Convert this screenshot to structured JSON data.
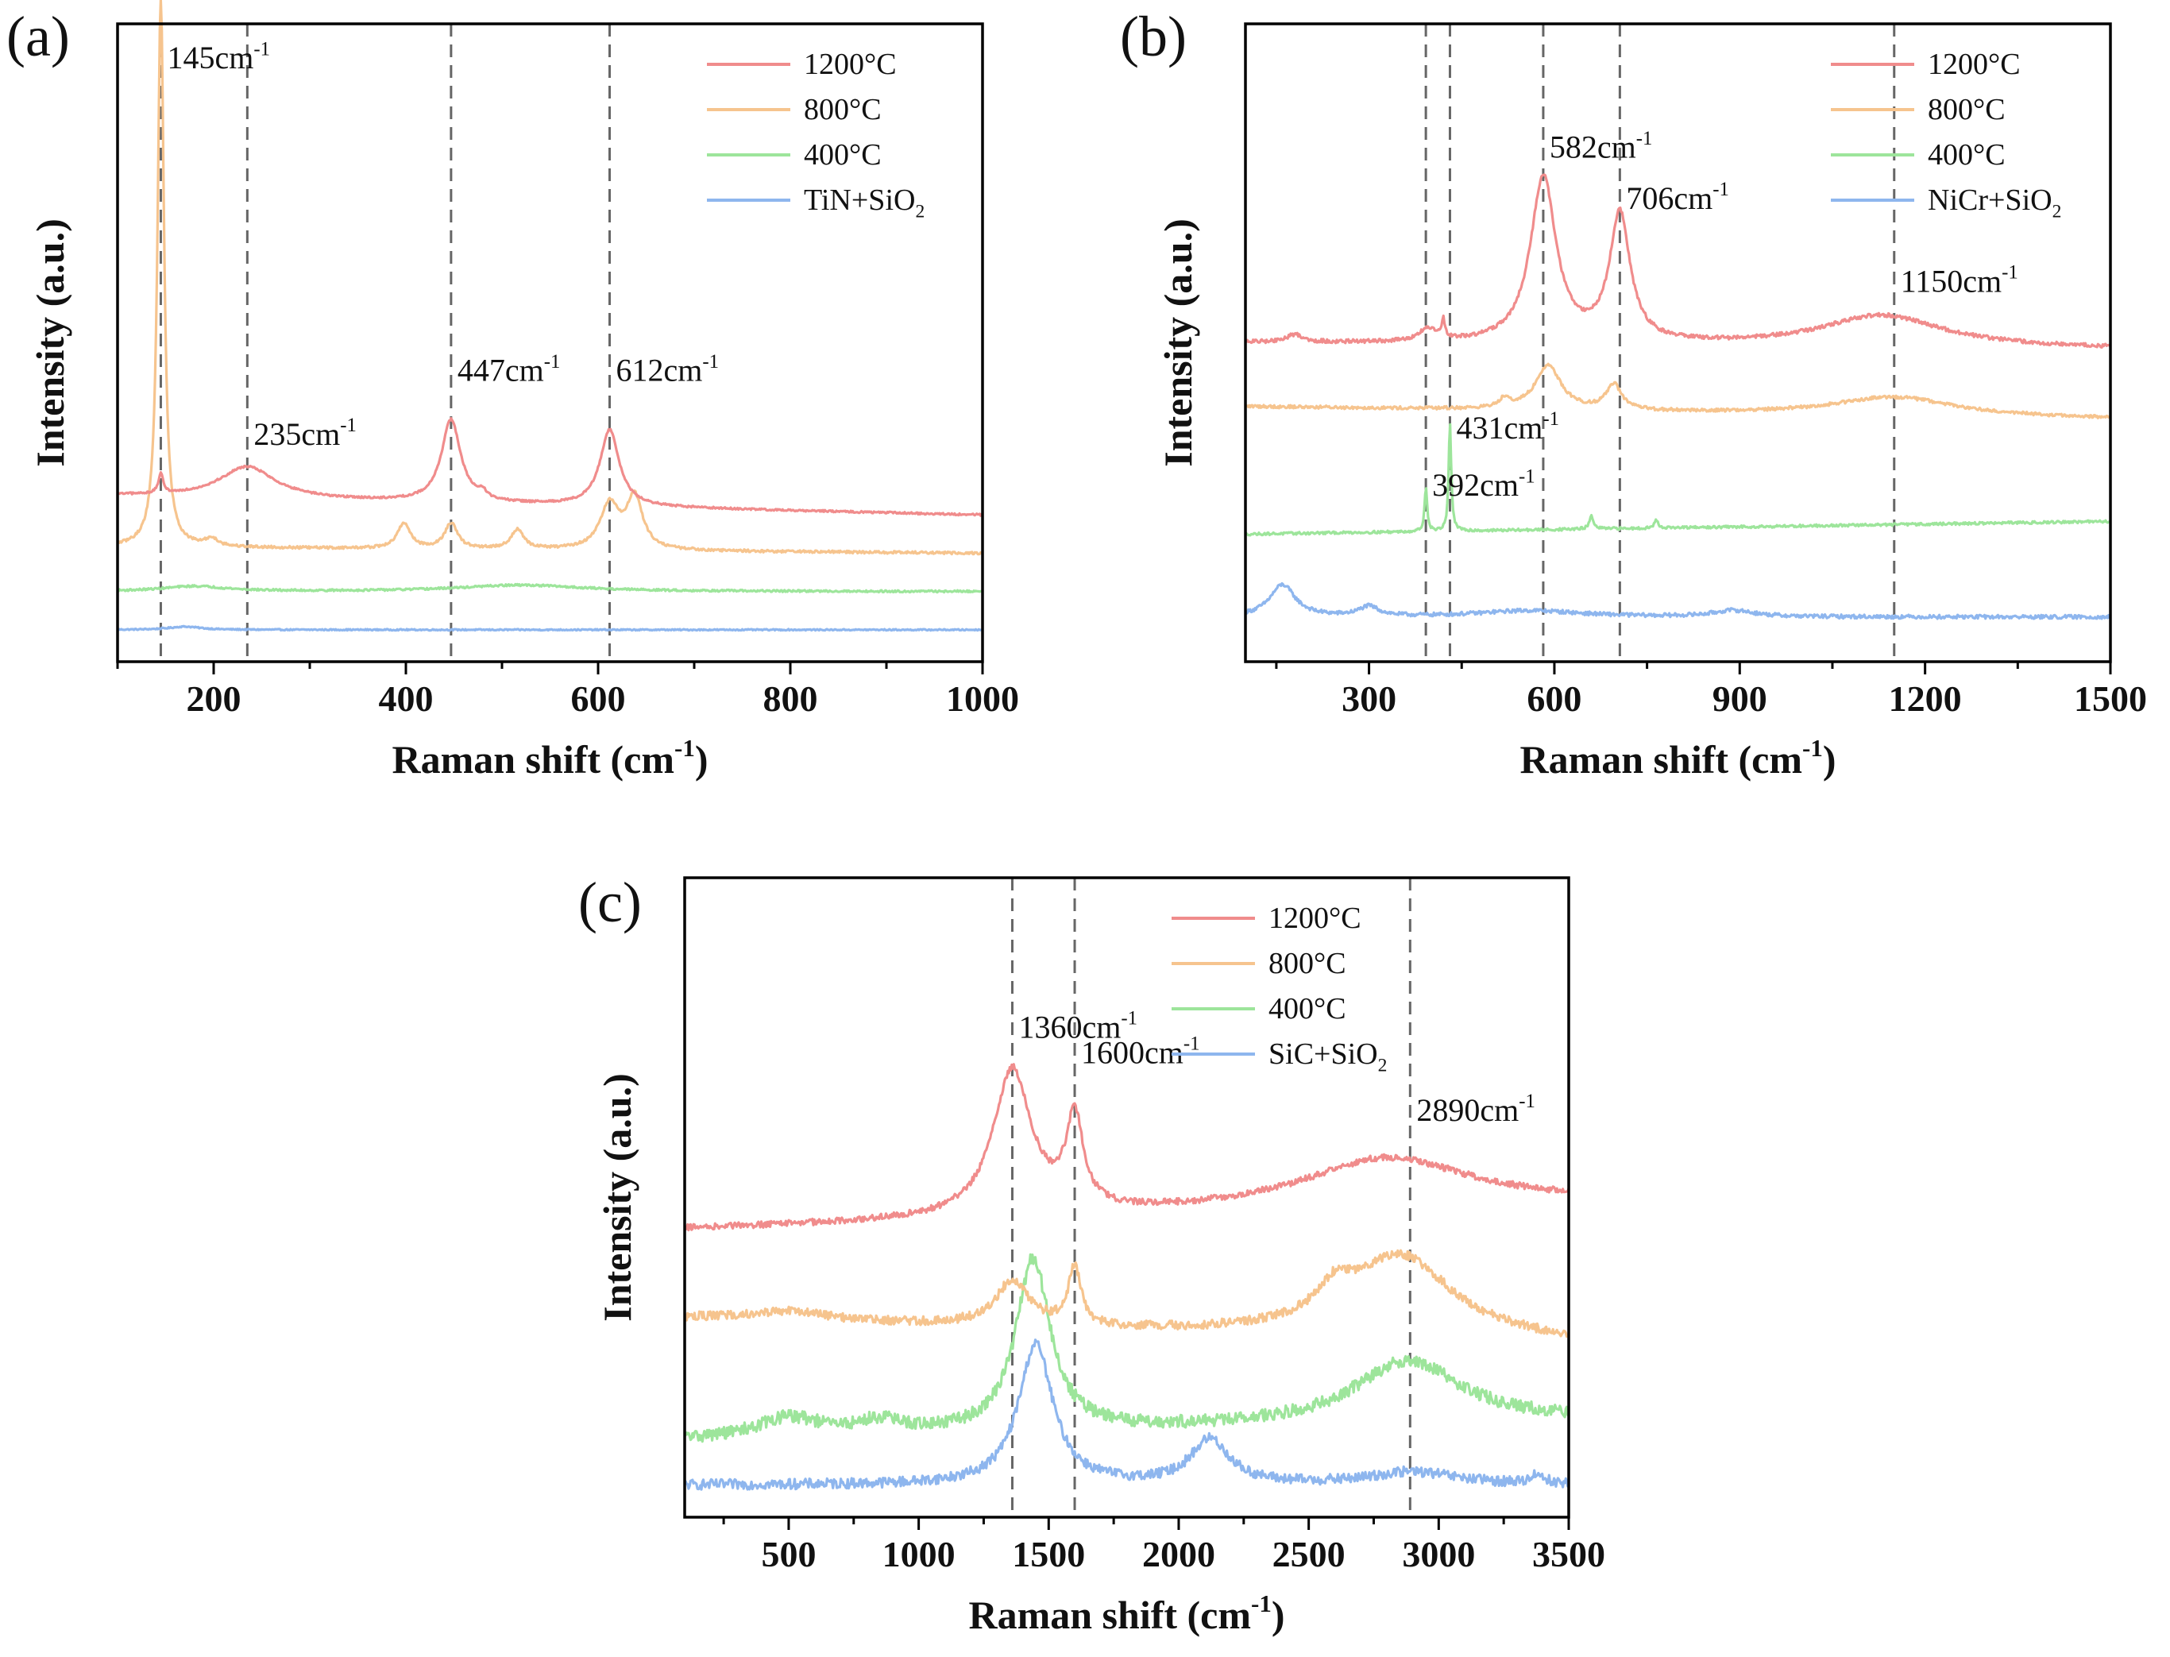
{
  "colors": {
    "c1200": "#F08C8C",
    "c800": "#F6C48E",
    "c400": "#9DE59B",
    "base": "#8EB6EE",
    "axis": "#000000",
    "dash": "#666666"
  },
  "chart_data": [
    {
      "id": "a",
      "type": "line",
      "panel_label": "(a)",
      "xlabel": "Raman shift (cm",
      "xlabel_sup": "-1",
      "xlabel_end": ")",
      "ylabel": "Intensity (a.u.)",
      "xlim": [
        100,
        1000
      ],
      "ylim": [
        0,
        100
      ],
      "xticks": [
        200,
        400,
        600,
        800,
        1000
      ],
      "yticks_visible": false,
      "dashed_lines": [
        145,
        235,
        447,
        612
      ],
      "annotations": [
        {
          "label": "145cm",
          "sup": "-1",
          "x": 145,
          "y": 93
        },
        {
          "label": "235cm",
          "sup": "-1",
          "x": 235,
          "y": 34
        },
        {
          "label": "447cm",
          "sup": "-1",
          "x": 447,
          "y": 44
        },
        {
          "label": "612cm",
          "sup": "-1",
          "x": 612,
          "y": 44
        }
      ],
      "legend": [
        {
          "label": "1200°C",
          "color_key": "c1200"
        },
        {
          "label": "800°C",
          "color_key": "c800"
        },
        {
          "label": "400°C",
          "color_key": "c400"
        },
        {
          "label": "TiN+SiO",
          "sub": "2",
          "color_key": "base"
        }
      ],
      "series": [
        {
          "name": "1200°C",
          "color_key": "c1200",
          "baseline": 26,
          "slope": -3,
          "noise": 0.15,
          "peaks": [
            [
              145,
              3,
              3
            ],
            [
              235,
              5,
              35
            ],
            [
              447,
              13,
              12
            ],
            [
              612,
              12,
              12
            ],
            [
              480,
              1,
              5
            ]
          ]
        },
        {
          "name": "800°C",
          "color_key": "c800",
          "baseline": 18,
          "slope": -1,
          "noise": 0.2,
          "peaks": [
            [
              145,
              86,
              4
            ],
            [
              198,
              1.2,
              8
            ],
            [
              398,
              4,
              8
            ],
            [
              447,
              4,
              8
            ],
            [
              516,
              3,
              8
            ],
            [
              612,
              7,
              12
            ],
            [
              638,
              8,
              10
            ]
          ]
        },
        {
          "name": "400°C",
          "color_key": "c400",
          "baseline": 11,
          "slope": 0,
          "noise": 0.15,
          "peaks": [
            [
              180,
              0.8,
              40
            ],
            [
              520,
              1,
              80
            ]
          ]
        },
        {
          "name": "TiN+SiO2",
          "color_key": "base",
          "baseline": 5,
          "slope": 0,
          "noise": 0.1,
          "peaks": [
            [
              170,
              0.5,
              20
            ]
          ]
        }
      ]
    },
    {
      "id": "b",
      "type": "line",
      "panel_label": "(b)",
      "xlabel": "Raman shift (cm",
      "xlabel_sup": "-1",
      "xlabel_end": ")",
      "ylabel": "Intensity (a.u.)",
      "xlim": [
        100,
        1500
      ],
      "ylim": [
        0,
        100
      ],
      "xticks": [
        300,
        600,
        900,
        1200,
        1500
      ],
      "yticks_visible": false,
      "dashed_lines": [
        392,
        431,
        582,
        706,
        1150
      ],
      "annotations": [
        {
          "label": "582cm",
          "sup": "-1",
          "x": 582,
          "y": 79
        },
        {
          "label": "706cm",
          "sup": "-1",
          "x": 706,
          "y": 71
        },
        {
          "label": "1150cm",
          "sup": "-1",
          "x": 1150,
          "y": 58
        },
        {
          "label": "431cm",
          "sup": "-1",
          "x": 431,
          "y": 35
        },
        {
          "label": "392cm",
          "sup": "-1",
          "x": 392,
          "y": 26
        }
      ],
      "legend": [
        {
          "label": "1200°C",
          "color_key": "c1200"
        },
        {
          "label": "800°C",
          "color_key": "c800"
        },
        {
          "label": "400°C",
          "color_key": "c400"
        },
        {
          "label": "NiCr+SiO",
          "sub": "2",
          "color_key": "base"
        }
      ],
      "series": [
        {
          "name": "1200°C",
          "color_key": "c1200",
          "baseline": 50,
          "slope": -1,
          "noise": 0.3,
          "peaks": [
            [
              582,
              26,
              25
            ],
            [
              706,
              20,
              20
            ],
            [
              1130,
              5,
              120
            ],
            [
              420,
              3,
              3
            ],
            [
              395,
              2,
              15
            ],
            [
              180,
              1.2,
              15
            ]
          ]
        },
        {
          "name": "800°C",
          "color_key": "c800",
          "baseline": 40,
          "slope": -2,
          "noise": 0.25,
          "peaks": [
            [
              590,
              7,
              25
            ],
            [
              520,
              1.5,
              10
            ],
            [
              696,
              4,
              15
            ],
            [
              1150,
              3,
              120
            ]
          ]
        },
        {
          "name": "400°C",
          "color_key": "c400",
          "baseline": 20,
          "slope": 2,
          "noise": 0.2,
          "peaks": [
            [
              392,
              7,
              2.5
            ],
            [
              431,
              17,
              2.5
            ],
            [
              660,
              2,
              4
            ],
            [
              765,
              1.2,
              4
            ]
          ]
        },
        {
          "name": "NiCr+SiO2",
          "color_key": "base",
          "baseline": 7,
          "slope": 0,
          "noise": 0.3,
          "peaks": [
            [
              160,
              5,
              25
            ],
            [
              300,
              1.5,
              20
            ],
            [
              560,
              1,
              100
            ],
            [
              890,
              1,
              40
            ]
          ]
        }
      ]
    },
    {
      "id": "c",
      "type": "line",
      "panel_label": "(c)",
      "xlabel": "Raman shift (cm",
      "xlabel_sup": "-1",
      "xlabel_end": ")",
      "ylabel": "Intensity (a.u.)",
      "xlim": [
        100,
        3500
      ],
      "ylim": [
        0,
        100
      ],
      "xticks": [
        500,
        1000,
        1500,
        2000,
        2500,
        3000,
        3500
      ],
      "yticks_visible": false,
      "dashed_lines": [
        1360,
        1600,
        2890
      ],
      "annotations": [
        {
          "label": "1360cm",
          "sup": "-1",
          "x": 1360,
          "y": 75
        },
        {
          "label": "1600cm",
          "sup": "-1",
          "x": 1600,
          "y": 71
        },
        {
          "label": "2890cm",
          "sup": "-1",
          "x": 2890,
          "y": 62
        }
      ],
      "legend": [
        {
          "label": "1200°C",
          "color_key": "c1200"
        },
        {
          "label": "800°C",
          "color_key": "c800"
        },
        {
          "label": "400°C",
          "color_key": "c400"
        },
        {
          "label": "SiC+SiO",
          "sub": "2",
          "color_key": "base"
        }
      ],
      "series": [
        {
          "name": "1200°C",
          "color_key": "c1200",
          "baseline": 45,
          "slope": 4,
          "noise": 0.5,
          "peaks": [
            [
              1360,
              23,
              90
            ],
            [
              1600,
              14,
              40
            ],
            [
              2800,
              8,
              400
            ]
          ]
        },
        {
          "name": "800°C",
          "color_key": "c800",
          "baseline": 31,
          "slope": -4,
          "noise": 0.7,
          "peaks": [
            [
              1360,
              7,
              80
            ],
            [
              1600,
              9,
              30
            ],
            [
              2850,
              13,
              250
            ],
            [
              2600,
              4,
              80
            ],
            [
              500,
              1.5,
              200
            ]
          ]
        },
        {
          "name": "400°C",
          "color_key": "c400",
          "baseline": 12,
          "slope": 3,
          "noise": 1.0,
          "peaks": [
            [
              1440,
              27,
              80
            ],
            [
              2880,
              10,
              250
            ],
            [
              500,
              3,
              150
            ],
            [
              850,
              2,
              100
            ]
          ]
        },
        {
          "name": "SiC+SiO2",
          "color_key": "base",
          "baseline": 5,
          "slope": 0,
          "noise": 0.8,
          "peaks": [
            [
              1450,
              22,
              80
            ],
            [
              2120,
              7,
              90
            ],
            [
              2900,
              2,
              200
            ],
            [
              3380,
              1.5,
              30
            ]
          ]
        }
      ]
    }
  ]
}
